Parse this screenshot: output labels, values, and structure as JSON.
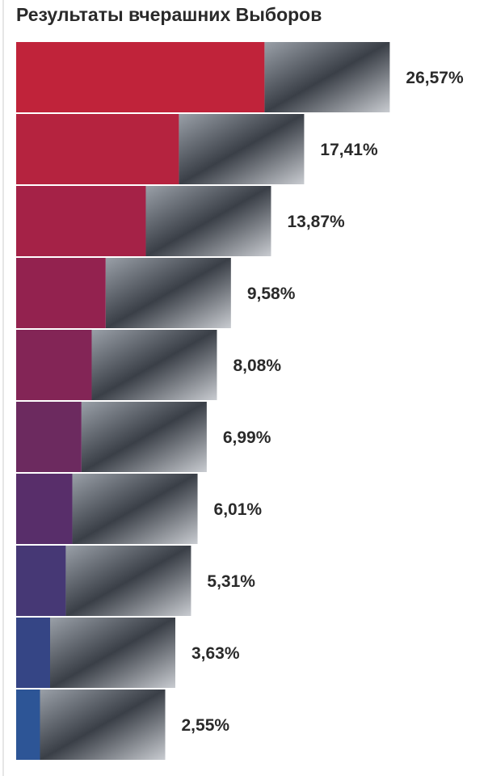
{
  "chart_data": {
    "type": "bar",
    "orientation": "horizontal",
    "title": "Результаты вчерашних Выборов",
    "values": [
      26.57,
      17.41,
      13.87,
      9.58,
      8.08,
      6.99,
      6.01,
      5.31,
      3.63,
      2.55
    ],
    "value_labels": [
      "26,57%",
      "17,41%",
      "13,87%",
      "9,58%",
      "8,08%",
      "6,99%",
      "6,01%",
      "5,31%",
      "3,63%",
      "2,55%"
    ],
    "colors": [
      "#c0233a",
      "#b5233f",
      "#a52247",
      "#93224f",
      "#832556",
      "#6c2a5f",
      "#582e6a",
      "#463875",
      "#354585",
      "#2d5596"
    ]
  }
}
